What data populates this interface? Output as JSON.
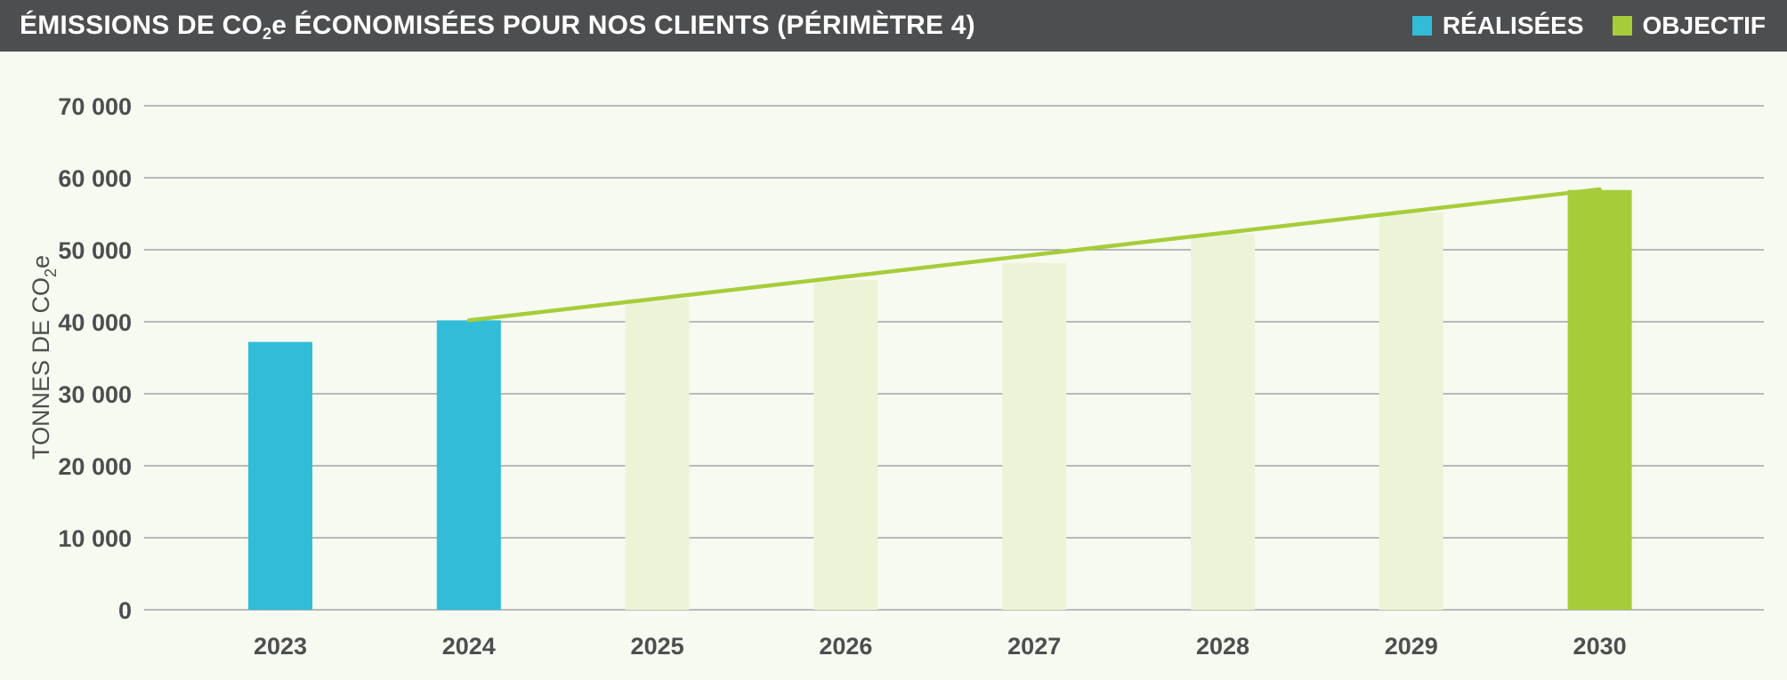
{
  "header": {
    "title_pre": "ÉMISSIONS DE CO",
    "title_sub": "2",
    "title_post": "e ÉCONOMISÉES POUR NOS CLIENTS (PÉRIMÈTRE 4)"
  },
  "legend": [
    {
      "label": "RÉALISÉES",
      "color": "#31bcd8"
    },
    {
      "label": "OBJECTIF",
      "color": "#a6cd39"
    }
  ],
  "colors": {
    "actual": "#31bcd8",
    "target": "#a6cd39",
    "projection": "#ecf4d8",
    "grid": "#8f9399",
    "text": "#4d4e50"
  },
  "chart_data": {
    "type": "bar",
    "title": "ÉMISSIONS DE CO2e ÉCONOMISÉES POUR NOS CLIENTS (PÉRIMÈTRE 4)",
    "ylabel_pre": "TONNES DE CO",
    "ylabel_sub": "2",
    "ylabel_post": "e",
    "xlabel": "",
    "ylim": [
      0,
      70000
    ],
    "yticks": [
      0,
      10000,
      20000,
      30000,
      40000,
      50000,
      60000,
      70000
    ],
    "ytick_labels": [
      "0",
      "10 000",
      "20 000",
      "30 000",
      "40 000",
      "50 000",
      "60 000",
      "70 000"
    ],
    "categories": [
      "2023",
      "2024",
      "2025",
      "2026",
      "2027",
      "2028",
      "2029",
      "2030"
    ],
    "bars": [
      {
        "category": "2023",
        "value": 37200,
        "kind": "actual"
      },
      {
        "category": "2024",
        "value": 40200,
        "kind": "actual"
      },
      {
        "category": "2025",
        "value": 43200,
        "kind": "projection"
      },
      {
        "category": "2026",
        "value": 45800,
        "kind": "projection"
      },
      {
        "category": "2027",
        "value": 48200,
        "kind": "projection"
      },
      {
        "category": "2028",
        "value": 52200,
        "kind": "projection"
      },
      {
        "category": "2029",
        "value": 55200,
        "kind": "projection"
      },
      {
        "category": "2030",
        "value": 58300,
        "kind": "target"
      }
    ],
    "trend_line": {
      "from": [
        "2024",
        40200
      ],
      "to": [
        "2030",
        58400
      ]
    },
    "grid": true,
    "legend_position": "top-right"
  }
}
